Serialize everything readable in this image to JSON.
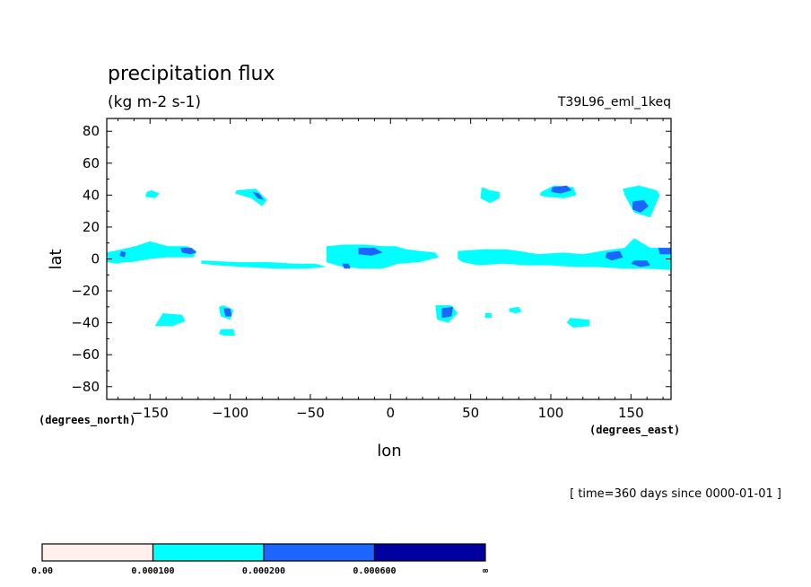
{
  "chart_data": {
    "type": "heatmap",
    "title": "precipitation flux",
    "units": "(kg m-2 s-1)",
    "run_label": "T39L96_eml_1keq",
    "xlabel": "lon",
    "ylabel": "lat",
    "x_unit_label": "(degrees_east)",
    "y_unit_label": "(degrees_north)",
    "time_label": "[ time=360 days since 0000-01-01 ]",
    "xlim": [
      -177,
      175
    ],
    "ylim": [
      -88,
      88
    ],
    "x_ticks": [
      -150,
      -100,
      -50,
      0,
      50,
      100,
      150
    ],
    "x_tick_labels": [
      "-150",
      "-100",
      "-50",
      "0",
      "50",
      "100",
      "150"
    ],
    "y_ticks": [
      80,
      60,
      40,
      20,
      0,
      -20,
      -40,
      -60,
      -80
    ],
    "y_tick_labels": [
      "80",
      "60",
      "40",
      "20",
      "0",
      "-20",
      "-40",
      "-60",
      "-80"
    ],
    "grid": false,
    "colorbar": {
      "levels": [
        "0.00",
        "0.000100",
        "0.000200",
        "0.000600",
        "∞"
      ],
      "colors": [
        "#fff0ee",
        "#00ffff",
        "#1e64ff",
        "#0000a0"
      ]
    },
    "regions": [
      {
        "level": 1,
        "lon": [
          -177,
          -159,
          -150,
          -139,
          -127,
          -121,
          -123,
          -140,
          -150,
          -162,
          -172,
          -177
        ],
        "lat": [
          4,
          8,
          11,
          8,
          8,
          5,
          1,
          1,
          0,
          -2,
          -2,
          2
        ]
      },
      {
        "level": 1,
        "lon": [
          -176,
          -165,
          -160,
          -170,
          -177
        ],
        "lat": [
          3,
          4,
          0,
          -3,
          -2
        ]
      },
      {
        "level": 2,
        "lon": [
          -168,
          -165,
          -166,
          -169
        ],
        "lat": [
          5,
          4,
          1,
          2
        ]
      },
      {
        "level": 2,
        "lon": [
          -131,
          -124,
          -121,
          -125,
          -130
        ],
        "lat": [
          7,
          7,
          4,
          3,
          4
        ]
      },
      {
        "level": 1,
        "lon": [
          -152,
          -149,
          -144,
          -147,
          -153
        ],
        "lat": [
          42,
          43,
          41,
          38,
          39
        ]
      },
      {
        "level": 1,
        "lon": [
          -96,
          -84,
          -77,
          -80,
          -87,
          -97
        ],
        "lat": [
          43,
          44,
          37,
          33,
          38,
          41
        ]
      },
      {
        "level": 2,
        "lon": [
          -86,
          -82,
          -79,
          -83
        ],
        "lat": [
          42,
          41,
          37,
          38
        ]
      },
      {
        "level": 1,
        "lon": [
          -118,
          -95,
          -75,
          -60,
          -47,
          -40,
          -52,
          -72,
          -92,
          -108,
          -118
        ],
        "lat": [
          -1,
          -2,
          -2,
          -3,
          -3,
          -5,
          -6,
          -6,
          -5,
          -4,
          -3
        ]
      },
      {
        "level": 1,
        "lon": [
          -40,
          -28,
          -16,
          -5,
          3,
          10,
          18,
          28,
          30,
          18,
          5,
          -5,
          -18,
          -30,
          -40
        ],
        "lat": [
          8,
          9,
          9,
          8,
          8,
          6,
          5,
          4,
          1,
          -2,
          -3,
          -6,
          -6,
          -5,
          -2
        ]
      },
      {
        "level": 2,
        "lon": [
          -20,
          -10,
          -5,
          -12,
          -20
        ],
        "lat": [
          7,
          7,
          4,
          2,
          3
        ]
      },
      {
        "level": 2,
        "lon": [
          -30,
          -26,
          -25,
          -29
        ],
        "lat": [
          -3,
          -3,
          -6,
          -6
        ]
      },
      {
        "level": 1,
        "lon": [
          42,
          58,
          72,
          80,
          92,
          108,
          120,
          132,
          146,
          152,
          162,
          175,
          175,
          160,
          145,
          128,
          115,
          100,
          85,
          70,
          55,
          45,
          42
        ],
        "lat": [
          5,
          6,
          6,
          5,
          3,
          4,
          3,
          5,
          7,
          13,
          7,
          7,
          -7,
          -6,
          -6,
          -5,
          -5,
          -4,
          -4,
          -3,
          -4,
          -2,
          0
        ]
      },
      {
        "level": 2,
        "lon": [
          135,
          143,
          145,
          138,
          134
        ],
        "lat": [
          4,
          5,
          1,
          -1,
          1
        ]
      },
      {
        "level": 2,
        "lon": [
          152,
          160,
          162,
          156,
          150
        ],
        "lat": [
          -1,
          -1,
          -4,
          -5,
          -3
        ]
      },
      {
        "level": 2,
        "lon": [
          167,
          175,
          175,
          168
        ],
        "lat": [
          7,
          7,
          3,
          3
        ]
      },
      {
        "level": 1,
        "lon": [
          94,
          102,
          114,
          116,
          108,
          96,
          93
        ],
        "lat": [
          42,
          46,
          45,
          40,
          38,
          39,
          40
        ]
      },
      {
        "level": 2,
        "lon": [
          101,
          110,
          113,
          106,
          100
        ],
        "lat": [
          45,
          46,
          43,
          41,
          42
        ]
      },
      {
        "level": 1,
        "lon": [
          145,
          155,
          166,
          168,
          162,
          152,
          146
        ],
        "lat": [
          44,
          46,
          43,
          40,
          26,
          29,
          40
        ]
      },
      {
        "level": 2,
        "lon": [
          151,
          158,
          161,
          156,
          151
        ],
        "lat": [
          36,
          37,
          33,
          29,
          31
        ]
      },
      {
        "level": 1,
        "lon": [
          57,
          62,
          68,
          68,
          62,
          56
        ],
        "lat": [
          45,
          43,
          42,
          38,
          35,
          38
        ]
      },
      {
        "level": 1,
        "lon": [
          -107,
          -104,
          -98,
          -100,
          -106
        ],
        "lat": [
          -30,
          -29,
          -32,
          -38,
          -36
        ]
      },
      {
        "level": 2,
        "lon": [
          -104,
          -100,
          -99,
          -103
        ],
        "lat": [
          -31,
          -31,
          -36,
          -36
        ]
      },
      {
        "level": 1,
        "lon": [
          -142,
          -130,
          -128,
          -136,
          -147
        ],
        "lat": [
          -34,
          -35,
          -39,
          -42,
          -42
        ]
      },
      {
        "level": 1,
        "lon": [
          -106,
          -98,
          -97,
          -104,
          -107
        ],
        "lat": [
          -44,
          -44,
          -48,
          -48,
          -47
        ]
      },
      {
        "level": 1,
        "lon": [
          28,
          38,
          42,
          36,
          29
        ],
        "lat": [
          -29,
          -29,
          -34,
          -40,
          -38
        ]
      },
      {
        "level": 2,
        "lon": [
          32,
          39,
          38,
          32
        ],
        "lat": [
          -31,
          -30,
          -36,
          -37
        ]
      },
      {
        "level": 1,
        "lon": [
          74,
          80,
          82,
          78,
          74
        ],
        "lat": [
          -31,
          -30,
          -33,
          -34,
          -33
        ]
      },
      {
        "level": 1,
        "lon": [
          112,
          124,
          124,
          114,
          110
        ],
        "lat": [
          -37,
          -38,
          -42,
          -43,
          -40
        ]
      },
      {
        "level": 1,
        "lon": [
          59,
          63,
          63,
          59
        ],
        "lat": [
          -34,
          -34,
          -37,
          -37
        ]
      }
    ]
  }
}
